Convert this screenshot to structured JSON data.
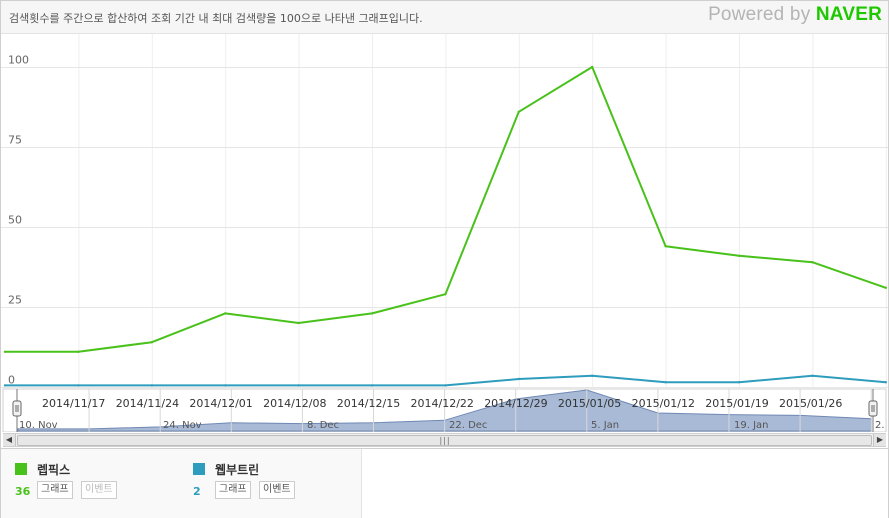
{
  "header": {
    "description": "검색횟수를 주간으로 합산하여 조회 기간 내 최대 검색량을 100으로 나타낸 그래프입니다.",
    "powered_prefix": "Powered by ",
    "powered_brand": "NAVER"
  },
  "chart_data": {
    "type": "line",
    "x": [
      "2014/11/10",
      "2014/11/17",
      "2014/11/24",
      "2014/12/01",
      "2014/12/08",
      "2014/12/15",
      "2014/12/22",
      "2014/12/29",
      "2015/01/05",
      "2015/01/12",
      "2015/01/19",
      "2015/01/26",
      "2015/02/02"
    ],
    "series": [
      {
        "name": "렙픽스",
        "color": "#49c11b",
        "values": [
          11,
          11,
          14,
          23,
          20,
          23,
          29,
          86,
          100,
          44,
          41,
          39,
          31
        ]
      },
      {
        "name": "웹부트린",
        "color": "#2e9dbd",
        "values": [
          0.5,
          0.5,
          0.5,
          0.5,
          0.5,
          0.5,
          0.5,
          2.5,
          3.5,
          1.5,
          1.5,
          3.5,
          1.5
        ]
      }
    ],
    "ylim": [
      0,
      100
    ],
    "y_ticks": [
      "0",
      "25",
      "50",
      "75",
      "100"
    ],
    "x_tick_labels": [
      "2014/11/17",
      "2014/11/24",
      "2014/12/01",
      "2014/12/08",
      "2014/12/15",
      "2014/12/22",
      "2014/12/29",
      "2015/01/05",
      "2015/01/12",
      "2015/01/19",
      "2015/01/26"
    ],
    "navigator_labels": [
      "10. Nov",
      "24. Nov",
      "8. Dec",
      "22. Dec",
      "5. Jan",
      "19. Jan",
      "2."
    ],
    "navigator_values": [
      5,
      5,
      10,
      20,
      18,
      20,
      26,
      78,
      100,
      44,
      40,
      38,
      30
    ],
    "grid": true
  },
  "legend": {
    "items": [
      {
        "name": "렙픽스",
        "value": "36",
        "color": "#49c11b",
        "graph_btn": "그래프",
        "event_btn": "이벤트"
      },
      {
        "name": "웹부트린",
        "value": "2",
        "color": "#2e9dbd",
        "graph_btn": "그래프",
        "event_btn": "이벤트"
      }
    ]
  }
}
